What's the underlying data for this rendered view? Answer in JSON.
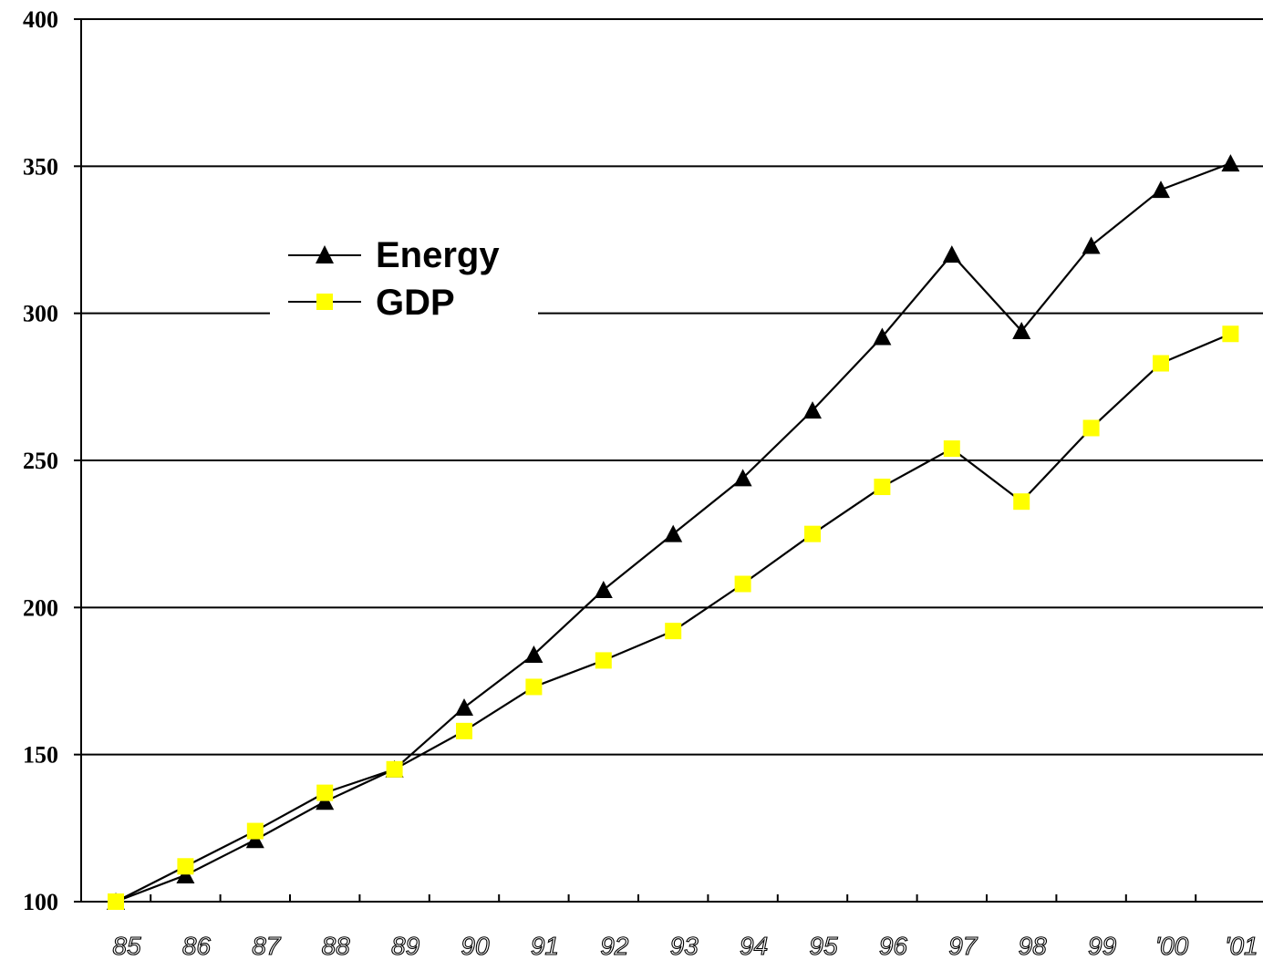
{
  "chart_data": {
    "type": "line",
    "categories": [
      "85",
      "86",
      "87",
      "88",
      "89",
      "90",
      "91",
      "92",
      "93",
      "94",
      "95",
      "96",
      "97",
      "98",
      "99",
      "'00",
      "'01"
    ],
    "series": [
      {
        "name": "Energy",
        "marker": "triangle",
        "marker_color": "#000000",
        "values": [
          100,
          109,
          121,
          134,
          145,
          166,
          184,
          206,
          225,
          244,
          267,
          292,
          320,
          294,
          323,
          342,
          351
        ]
      },
      {
        "name": "GDP",
        "marker": "square",
        "marker_color": "#ffff00",
        "values": [
          100,
          112,
          124,
          137,
          145,
          158,
          173,
          182,
          192,
          208,
          225,
          241,
          254,
          236,
          261,
          283,
          293
        ]
      }
    ],
    "yticks": [
      "100",
      "150",
      "200",
      "250",
      "300",
      "350",
      "400"
    ],
    "ylim": [
      100,
      400
    ],
    "title": "",
    "xlabel": "",
    "ylabel": "",
    "grid": "horizontal",
    "legend_position": "upper-left",
    "line_color": "#000000"
  }
}
